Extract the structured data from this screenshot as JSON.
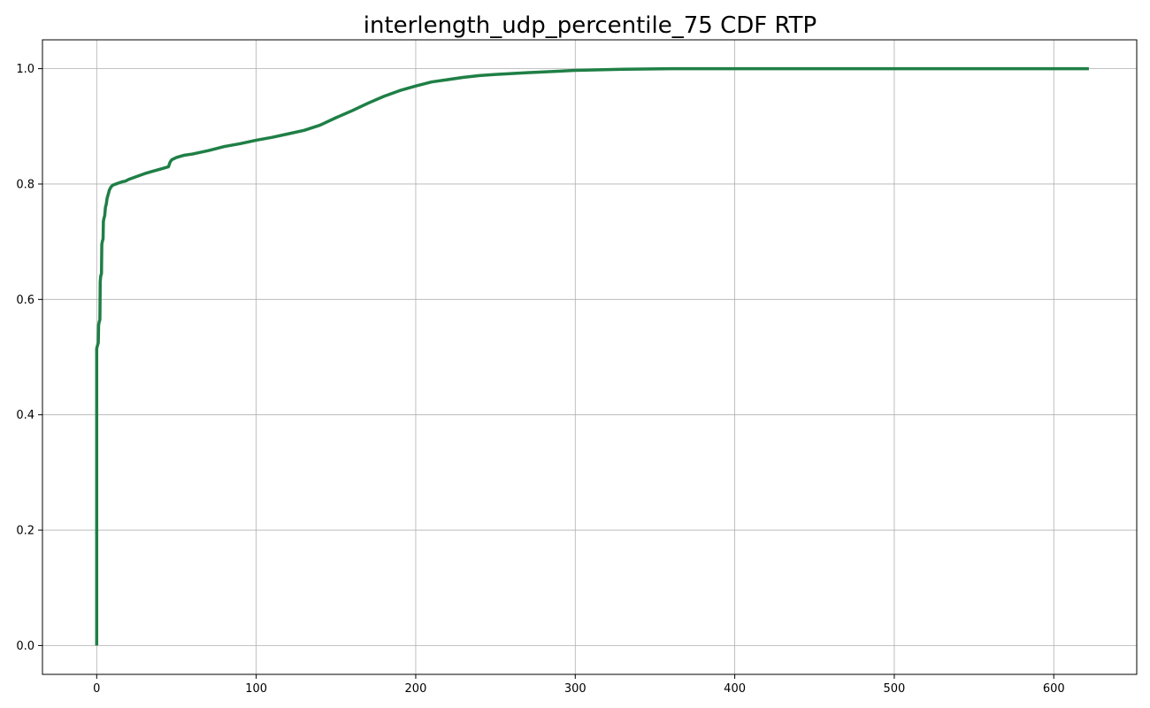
{
  "chart_data": {
    "type": "line",
    "title": "interlength_udp_percentile_75 CDF RTP",
    "xlabel": "",
    "ylabel": "",
    "xlim": [
      -34,
      652
    ],
    "ylim": [
      -0.05,
      1.05
    ],
    "xticks": [
      0,
      100,
      200,
      300,
      400,
      500,
      600
    ],
    "yticks": [
      0.0,
      0.2,
      0.4,
      0.6,
      0.8,
      1.0
    ],
    "xtick_labels": [
      "0",
      "100",
      "200",
      "300",
      "400",
      "500",
      "600"
    ],
    "ytick_labels": [
      "0.0",
      "0.2",
      "0.4",
      "0.6",
      "0.8",
      "1.0"
    ],
    "grid": true,
    "legend": "none",
    "series": [
      {
        "color": "#1f7f46",
        "x": [
          0,
          0,
          0.5,
          1.0,
          1.2,
          1.5,
          2.0,
          2.2,
          2.5,
          3.0,
          3.2,
          3.5,
          4.0,
          4.2,
          4.5,
          5.0,
          5.5,
          6.0,
          6.5,
          7.0,
          7.5,
          8.0,
          9.0,
          10.0,
          12.0,
          14.0,
          16.0,
          18.0,
          20.0,
          25.0,
          30.0,
          35.0,
          40.0,
          45.0,
          46.0,
          47.0,
          50.0,
          55.0,
          60.0,
          70.0,
          80.0,
          90.0,
          100.0,
          110.0,
          120.0,
          130.0,
          140.0,
          150.0,
          160.0,
          170.0,
          180.0,
          190.0,
          200.0,
          210.0,
          220.0,
          230.0,
          240.0,
          250.0,
          270.0,
          300.0,
          330.0,
          360.0,
          400.0,
          450.0,
          500.0,
          550.0,
          600.0,
          622.0
        ],
        "y": [
          0.0,
          0.515,
          0.52,
          0.525,
          0.555,
          0.56,
          0.565,
          0.63,
          0.64,
          0.645,
          0.695,
          0.7,
          0.705,
          0.735,
          0.74,
          0.745,
          0.76,
          0.765,
          0.775,
          0.78,
          0.785,
          0.79,
          0.795,
          0.798,
          0.8,
          0.802,
          0.804,
          0.805,
          0.808,
          0.813,
          0.818,
          0.822,
          0.826,
          0.83,
          0.838,
          0.842,
          0.846,
          0.85,
          0.852,
          0.858,
          0.865,
          0.87,
          0.876,
          0.881,
          0.887,
          0.893,
          0.902,
          0.915,
          0.927,
          0.94,
          0.952,
          0.962,
          0.97,
          0.977,
          0.981,
          0.985,
          0.988,
          0.99,
          0.993,
          0.997,
          0.999,
          1.0,
          1.0,
          1.0,
          1.0,
          1.0,
          1.0,
          1.0
        ]
      }
    ]
  }
}
